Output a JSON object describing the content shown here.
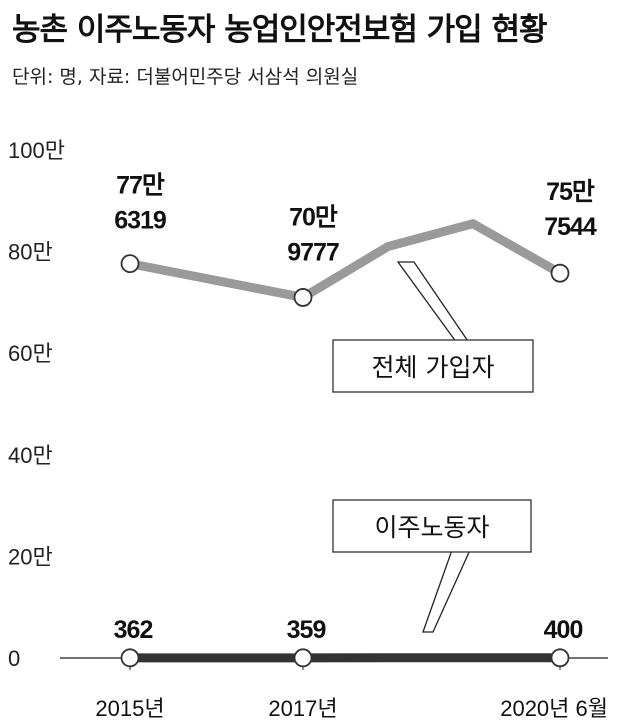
{
  "title": "농촌 이주노동자 농업인안전보험 가입 현황",
  "subtitle": "단위: 명, 자료: 더불어민주당 서삼석 의원실",
  "colors": {
    "total_line": "#9a9a9a",
    "migrant_line": "#333333",
    "axis": "#444444",
    "marker_fill": "#ffffff"
  },
  "chart_data": {
    "type": "line",
    "y_unit_label": "만",
    "ylim": [
      0,
      1000000
    ],
    "yticks": [
      "0",
      "20만",
      "40만",
      "60만",
      "80만",
      "100만"
    ],
    "ytick_values": [
      0,
      200000,
      400000,
      600000,
      800000,
      1000000
    ],
    "grid": false,
    "x_labels": [
      "2015년",
      "2017년",
      "2020년 6월"
    ],
    "series": [
      {
        "name": "전체 가입자",
        "points": [
          {
            "x": 2015,
            "y": 776319,
            "label_line1": "77만",
            "label_line2": "6319",
            "marker": true
          },
          {
            "x": 2017,
            "y": 709777,
            "label_line1": "70만",
            "label_line2": "9777",
            "marker": true
          },
          {
            "x": 2018,
            "y": 810000,
            "marker": false
          },
          {
            "x": 2019,
            "y": 855000,
            "marker": false
          },
          {
            "x": 2020.5,
            "y": 757544,
            "label_line1": "75만",
            "label_line2": "7544",
            "marker": true
          }
        ]
      },
      {
        "name": "이주노동자",
        "points": [
          {
            "x": 2015,
            "y": 362,
            "label_line1": "362",
            "marker": true
          },
          {
            "x": 2017,
            "y": 359,
            "label_line1": "359",
            "marker": true
          },
          {
            "x": 2020.5,
            "y": 400,
            "label_line1": "400",
            "marker": true
          }
        ]
      }
    ],
    "callouts": [
      {
        "series": "전체 가입자",
        "text": "전체 가입자"
      },
      {
        "series": "이주노동자",
        "text": "이주노동자"
      }
    ]
  }
}
